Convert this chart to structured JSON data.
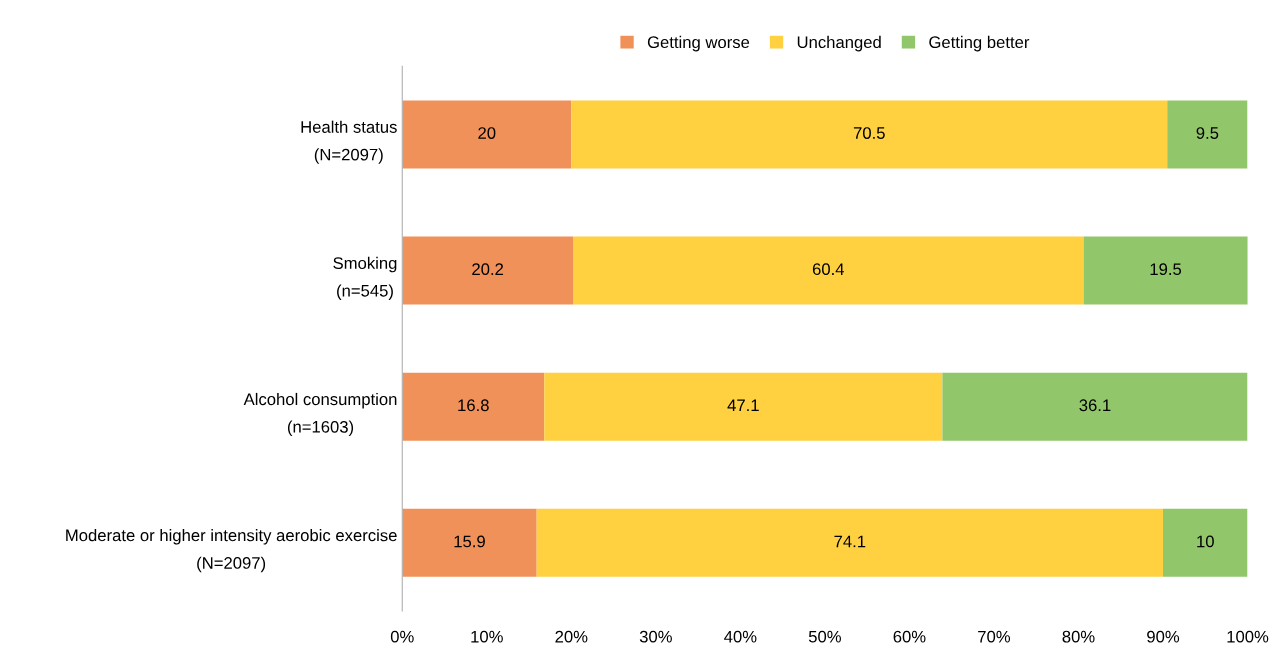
{
  "chart_data": {
    "type": "bar",
    "orientation": "horizontal",
    "stacked": true,
    "categories": [
      "Health status\n(N=2097)",
      "Smoking\n(n=545)",
      "Alcohol consumption\n(n=1603)",
      "Moderate or higher intensity aerobic exercise\n(N=2097)"
    ],
    "series": [
      {
        "name": "Getting worse",
        "color": "#f0915a",
        "values": [
          20,
          20.2,
          16.8,
          15.9
        ]
      },
      {
        "name": "Unchanged",
        "color": "#ffd040",
        "values": [
          70.5,
          60.4,
          47.1,
          74.1
        ]
      },
      {
        "name": "Getting better",
        "color": "#92c66a",
        "values": [
          9.5,
          19.5,
          36.1,
          10
        ]
      }
    ],
    "xlim": [
      0,
      100
    ],
    "xticks": [
      {
        "value": 0,
        "label": "0%"
      },
      {
        "value": 10,
        "label": "10%"
      },
      {
        "value": 20,
        "label": "20%"
      },
      {
        "value": 30,
        "label": "30%"
      },
      {
        "value": 40,
        "label": "40%"
      },
      {
        "value": 50,
        "label": "50%"
      },
      {
        "value": 60,
        "label": "60%"
      },
      {
        "value": 70,
        "label": "70%"
      },
      {
        "value": 80,
        "label": "80%"
      },
      {
        "value": 90,
        "label": "90%"
      },
      {
        "value": 100,
        "label": "100%"
      }
    ],
    "data_labels": true,
    "grid": false,
    "legend": "top"
  }
}
